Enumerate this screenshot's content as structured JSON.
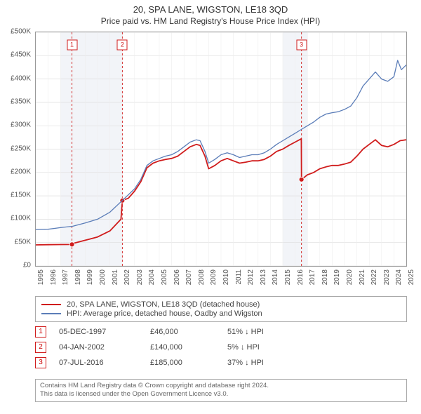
{
  "title": "20, SPA LANE, WIGSTON, LE18 3QD",
  "subtitle": "Price paid vs. HM Land Registry's House Price Index (HPI)",
  "chart": {
    "type": "line",
    "background_color": "#ffffff",
    "grid_shade_color": "#f2f4f8",
    "plot_border_color": "#999999",
    "title_fontsize": 13,
    "subtitle_fontsize": 12,
    "axis_label_fontsize": 10,
    "ylim": [
      0,
      500000
    ],
    "ytick_step": 50000,
    "y_ticks": [
      "£0",
      "£50K",
      "£100K",
      "£150K",
      "£200K",
      "£250K",
      "£300K",
      "£350K",
      "£400K",
      "£450K",
      "£500K"
    ],
    "xlim": [
      1995,
      2025
    ],
    "x_ticks": [
      "1995",
      "1996",
      "1997",
      "1998",
      "1999",
      "2000",
      "2001",
      "2002",
      "2003",
      "2004",
      "2005",
      "2006",
      "2007",
      "2008",
      "2009",
      "2010",
      "2011",
      "2012",
      "2013",
      "2014",
      "2015",
      "2016",
      "2017",
      "2018",
      "2019",
      "2020",
      "2021",
      "2022",
      "2023",
      "2024",
      "2025"
    ],
    "x_shaded_years": [
      1997,
      1998,
      1999,
      2000,
      2001,
      2015,
      2016
    ],
    "series": [
      {
        "name": "20, SPA LANE, WIGSTON, LE18 3QD (detached house)",
        "color": "#d01c1c",
        "line_width": 1.8,
        "points": [
          [
            1995,
            45000
          ],
          [
            1996,
            45500
          ],
          [
            1997,
            45800
          ],
          [
            1997.93,
            46000
          ],
          [
            1998,
            48000
          ],
          [
            1999,
            55000
          ],
          [
            2000,
            62000
          ],
          [
            2001,
            75000
          ],
          [
            2001.9,
            100000
          ],
          [
            2002.01,
            140000
          ],
          [
            2002.5,
            145000
          ],
          [
            2003,
            160000
          ],
          [
            2003.5,
            180000
          ],
          [
            2004,
            210000
          ],
          [
            2004.5,
            220000
          ],
          [
            2005,
            225000
          ],
          [
            2005.5,
            228000
          ],
          [
            2006,
            230000
          ],
          [
            2006.5,
            235000
          ],
          [
            2007,
            245000
          ],
          [
            2007.5,
            255000
          ],
          [
            2008,
            260000
          ],
          [
            2008.3,
            258000
          ],
          [
            2008.7,
            235000
          ],
          [
            2009,
            208000
          ],
          [
            2009.5,
            215000
          ],
          [
            2010,
            225000
          ],
          [
            2010.5,
            230000
          ],
          [
            2011,
            225000
          ],
          [
            2011.5,
            220000
          ],
          [
            2012,
            222000
          ],
          [
            2012.5,
            225000
          ],
          [
            2013,
            225000
          ],
          [
            2013.5,
            228000
          ],
          [
            2014,
            235000
          ],
          [
            2014.5,
            245000
          ],
          [
            2015,
            250000
          ],
          [
            2015.5,
            258000
          ],
          [
            2016,
            265000
          ],
          [
            2016.5,
            272000
          ],
          [
            2016.515,
            185000
          ],
          [
            2017,
            195000
          ],
          [
            2017.5,
            200000
          ],
          [
            2018,
            208000
          ],
          [
            2018.5,
            212000
          ],
          [
            2019,
            215000
          ],
          [
            2019.5,
            215000
          ],
          [
            2020,
            218000
          ],
          [
            2020.5,
            222000
          ],
          [
            2021,
            235000
          ],
          [
            2021.5,
            250000
          ],
          [
            2022,
            260000
          ],
          [
            2022.5,
            270000
          ],
          [
            2023,
            258000
          ],
          [
            2023.5,
            255000
          ],
          [
            2024,
            260000
          ],
          [
            2024.5,
            268000
          ],
          [
            2025,
            270000
          ]
        ],
        "markers": [
          {
            "x": 1997.93,
            "y": 46000
          },
          {
            "x": 2002.01,
            "y": 140000
          },
          {
            "x": 2016.515,
            "y": 185000
          }
        ]
      },
      {
        "name": "HPI: Average price, detached house, Oadby and Wigston",
        "color": "#5b7db8",
        "line_width": 1.3,
        "points": [
          [
            1995,
            78000
          ],
          [
            1996,
            78500
          ],
          [
            1997,
            82000
          ],
          [
            1998,
            85000
          ],
          [
            1999,
            92000
          ],
          [
            2000,
            100000
          ],
          [
            2001,
            115000
          ],
          [
            2002,
            140000
          ],
          [
            2003,
            165000
          ],
          [
            2003.5,
            185000
          ],
          [
            2004,
            215000
          ],
          [
            2004.5,
            225000
          ],
          [
            2005,
            230000
          ],
          [
            2005.5,
            235000
          ],
          [
            2006,
            238000
          ],
          [
            2006.5,
            245000
          ],
          [
            2007,
            255000
          ],
          [
            2007.5,
            265000
          ],
          [
            2008,
            270000
          ],
          [
            2008.3,
            268000
          ],
          [
            2008.7,
            245000
          ],
          [
            2009,
            220000
          ],
          [
            2009.5,
            228000
          ],
          [
            2010,
            238000
          ],
          [
            2010.5,
            242000
          ],
          [
            2011,
            238000
          ],
          [
            2011.5,
            232000
          ],
          [
            2012,
            235000
          ],
          [
            2012.5,
            238000
          ],
          [
            2013,
            238000
          ],
          [
            2013.5,
            242000
          ],
          [
            2014,
            250000
          ],
          [
            2014.5,
            260000
          ],
          [
            2015,
            268000
          ],
          [
            2015.5,
            276000
          ],
          [
            2016,
            284000
          ],
          [
            2016.5,
            292000
          ],
          [
            2017,
            300000
          ],
          [
            2017.5,
            308000
          ],
          [
            2018,
            318000
          ],
          [
            2018.5,
            325000
          ],
          [
            2019,
            328000
          ],
          [
            2019.5,
            330000
          ],
          [
            2020,
            335000
          ],
          [
            2020.5,
            342000
          ],
          [
            2021,
            360000
          ],
          [
            2021.5,
            385000
          ],
          [
            2022,
            400000
          ],
          [
            2022.5,
            415000
          ],
          [
            2023,
            400000
          ],
          [
            2023.5,
            395000
          ],
          [
            2024,
            405000
          ],
          [
            2024.3,
            440000
          ],
          [
            2024.6,
            420000
          ],
          [
            2025,
            430000
          ]
        ]
      }
    ],
    "sale_markers": [
      {
        "label": "1",
        "year": 1997.93,
        "color": "#d01c1c"
      },
      {
        "label": "2",
        "year": 2002.01,
        "color": "#d01c1c"
      },
      {
        "label": "3",
        "year": 2016.515,
        "color": "#d01c1c"
      }
    ],
    "marker_line_color": "#d01c1c",
    "marker_line_dash": "3,3"
  },
  "legend": {
    "border_color": "#aaaaaa",
    "items": [
      {
        "label": "20, SPA LANE, WIGSTON, LE18 3QD (detached house)",
        "color": "#d01c1c"
      },
      {
        "label": "HPI: Average price, detached house, Oadby and Wigston",
        "color": "#5b7db8"
      }
    ]
  },
  "sales": [
    {
      "num": "1",
      "date": "05-DEC-1997",
      "price": "£46,000",
      "delta": "51% ↓ HPI",
      "border": "#d01c1c"
    },
    {
      "num": "2",
      "date": "04-JAN-2002",
      "price": "£140,000",
      "delta": "5% ↓ HPI",
      "border": "#d01c1c"
    },
    {
      "num": "3",
      "date": "07-JUL-2016",
      "price": "£185,000",
      "delta": "37% ↓ HPI",
      "border": "#d01c1c"
    }
  ],
  "footer": {
    "line1": "Contains HM Land Registry data © Crown copyright and database right 2024.",
    "line2": "This data is licensed under the Open Government Licence v3.0.",
    "border_color": "#aaaaaa"
  }
}
